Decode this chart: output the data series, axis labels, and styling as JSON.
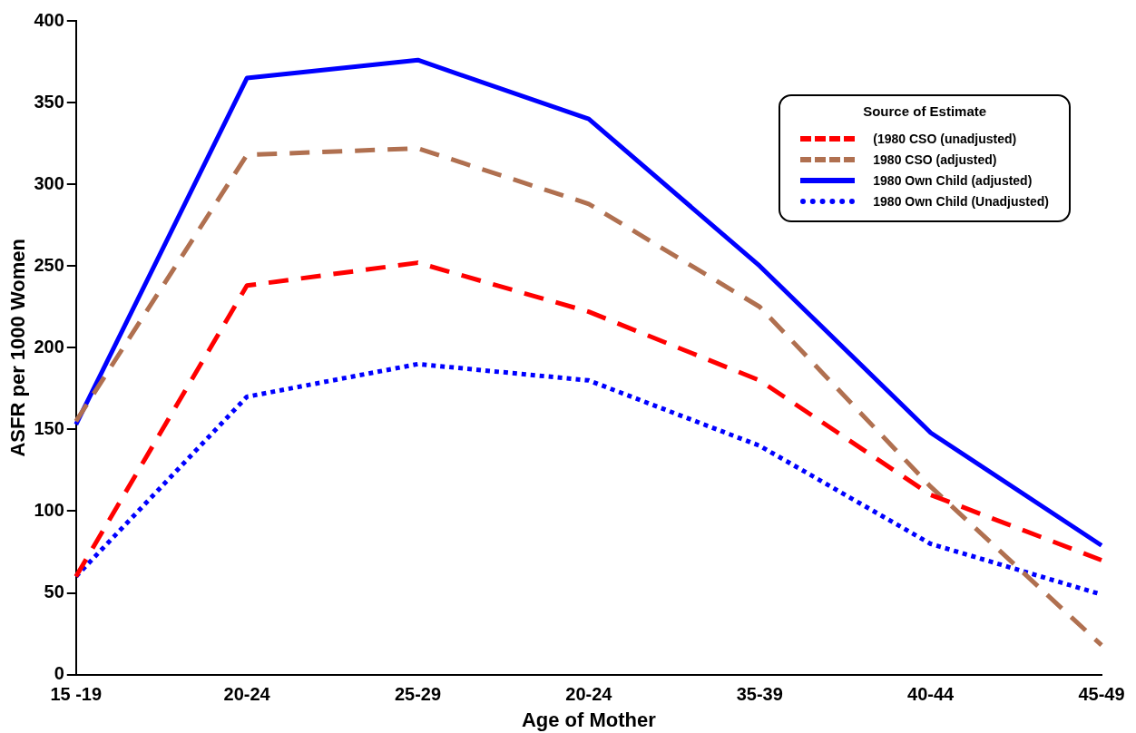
{
  "chart_data": {
    "type": "line",
    "xlabel": "Age of Mother",
    "ylabel": "ASFR per 1000 Women",
    "legend_title": "Source of Estimate",
    "legend": "top right",
    "grid": false,
    "marker": "none",
    "categories": [
      "15 -19",
      "20-24",
      "25-29",
      "20-24",
      "35-39",
      "40-44",
      "45-49"
    ],
    "ylim": [
      0,
      400
    ],
    "yticks": [
      0,
      50,
      100,
      150,
      200,
      250,
      300,
      350,
      400
    ],
    "series": [
      {
        "name": "(1980 CSO (unadjusted)",
        "color": "#ff0000",
        "line_style": "dashed",
        "values": [
          60,
          238,
          252,
          222,
          180,
          110,
          70
        ]
      },
      {
        "name": "1980 CSO (adjusted)",
        "color": "#b07050",
        "line_style": "dashed",
        "values": [
          155,
          318,
          322,
          288,
          225,
          115,
          18
        ]
      },
      {
        "name": "1980 Own Child (adjusted)",
        "color": "#0000ff",
        "line_style": "solid",
        "values": [
          153,
          365,
          376,
          340,
          250,
          148,
          79
        ]
      },
      {
        "name": "1980 Own Child (Unadjusted)",
        "color": "#0000ff",
        "line_style": "dotted",
        "values": [
          60,
          170,
          190,
          180,
          140,
          80,
          49
        ]
      }
    ]
  }
}
